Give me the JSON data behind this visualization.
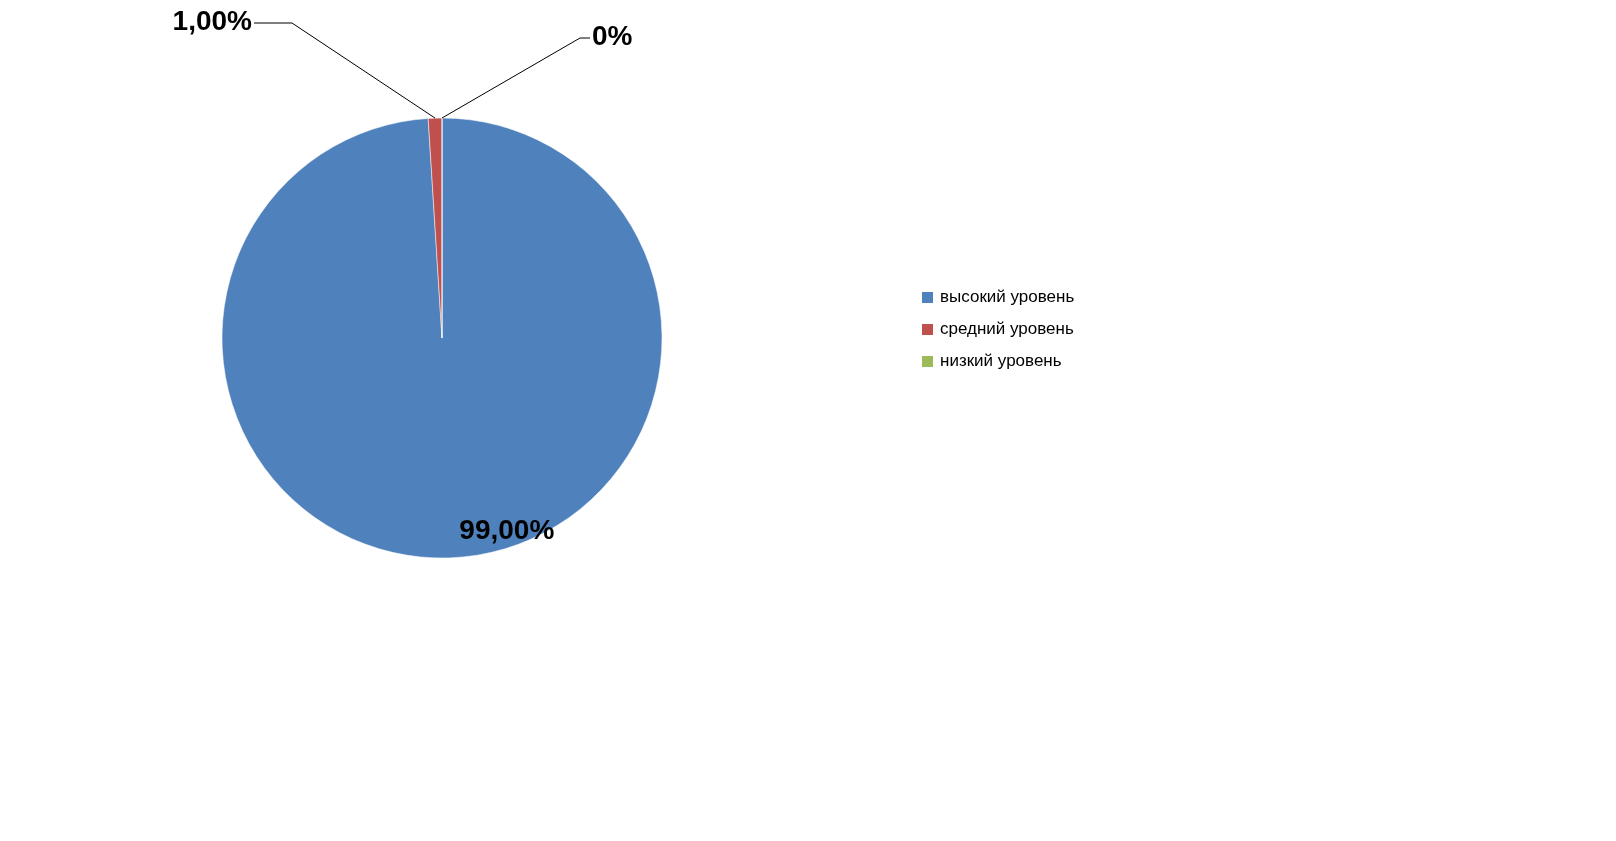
{
  "chart_data": {
    "type": "pie",
    "categories": [
      "высокий уровень",
      "средний уровень",
      "низкий уровень"
    ],
    "values": [
      99,
      1,
      0
    ],
    "colors": [
      "#4f81bd",
      "#c0504d",
      "#9bbb59"
    ],
    "value_labels": [
      "99,00%",
      "1,00%",
      "0%"
    ],
    "legend": "right"
  }
}
